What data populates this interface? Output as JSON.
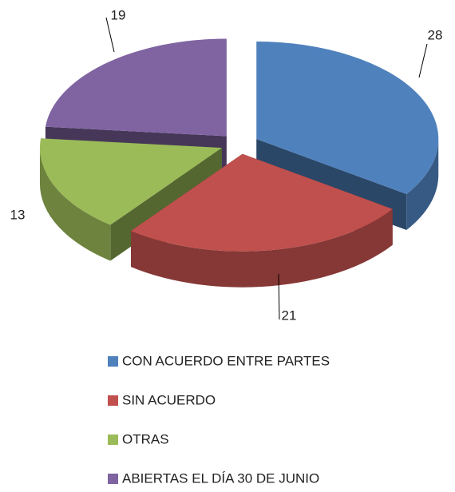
{
  "chart_data": {
    "type": "pie3d",
    "categories": [
      "CON ACUERDO ENTRE PARTES",
      "SIN ACUERDO",
      "OTRAS",
      "ABIERTAS EL DÍA 30 DE JUNIO"
    ],
    "values": [
      28,
      21,
      13,
      19
    ],
    "colors": [
      "#4f81bd",
      "#c0504d",
      "#9bbb59",
      "#8064a2"
    ],
    "legend": "bottom"
  }
}
